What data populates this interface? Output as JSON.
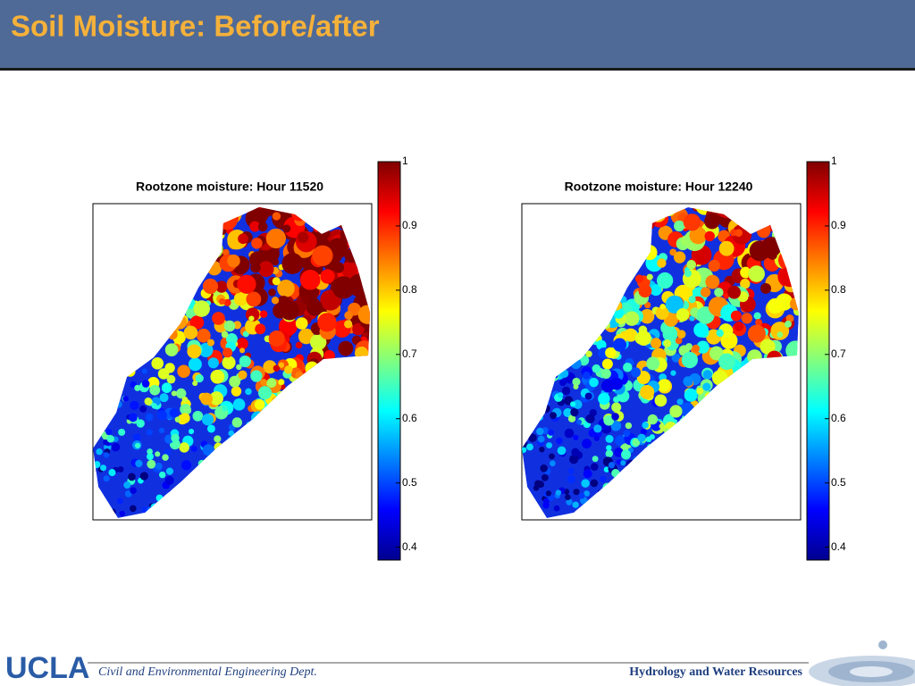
{
  "header": {
    "title": "Soil Moisture: Before/after"
  },
  "panels": [
    {
      "title": "Rootzone moisture: Hour 11520",
      "colorbar": {
        "lim": [
          0.38,
          1.0
        ],
        "ticks": [
          0.4,
          0.5,
          0.6,
          0.7,
          0.8,
          0.9,
          1
        ]
      }
    },
    {
      "title": "Rootzone moisture: Hour 12240",
      "colorbar": {
        "lim": [
          0.38,
          1.0
        ],
        "ticks": [
          0.4,
          0.5,
          0.6,
          0.7,
          0.8,
          0.9,
          1
        ]
      }
    }
  ],
  "footer": {
    "logo": "UCLA",
    "dept": "Civil and Environmental Engineering Dept.",
    "group": "Hydrology and Water Resources"
  }
}
